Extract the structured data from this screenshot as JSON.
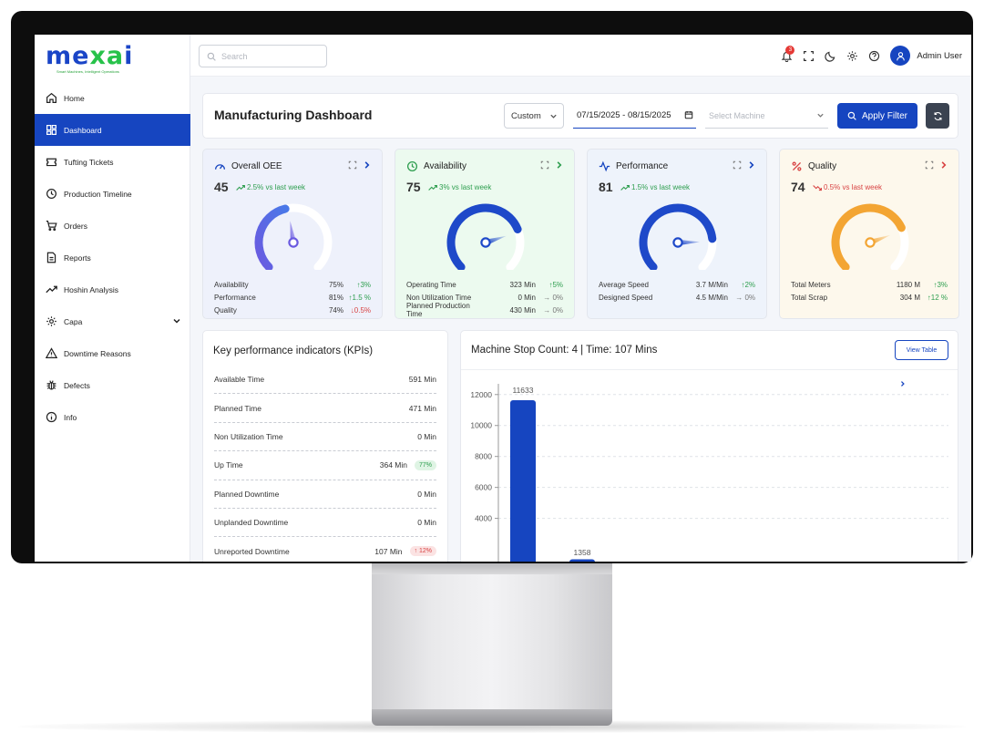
{
  "app": {
    "logo": {
      "part1": "me",
      "part2": "xa",
      "part3": "i",
      "tagline": "Smart Machines, Intelligent Operations"
    },
    "search_placeholder": "Search",
    "notifications_count": "3",
    "user_name": "Admin User"
  },
  "sidebar": {
    "items": [
      {
        "label": "Home",
        "icon": "home-icon",
        "active": false
      },
      {
        "label": "Dashboard",
        "icon": "dashboard-icon",
        "active": true
      },
      {
        "label": "Tufting Tickets",
        "icon": "ticket-icon",
        "active": false
      },
      {
        "label": "Production Timeline",
        "icon": "clock-icon",
        "active": false
      },
      {
        "label": "Orders",
        "icon": "cart-icon",
        "active": false
      },
      {
        "label": "Reports",
        "icon": "report-icon",
        "active": false
      },
      {
        "label": "Hoshin Analysis",
        "icon": "trend-icon",
        "active": false
      },
      {
        "label": "Capa",
        "icon": "gear-icon",
        "active": false
      },
      {
        "label": "Downtime Reasons",
        "icon": "warning-icon",
        "active": false
      },
      {
        "label": "Defects",
        "icon": "bug-icon",
        "active": false
      },
      {
        "label": "Info",
        "icon": "info-icon",
        "active": false
      }
    ]
  },
  "header": {
    "title": "Manufacturing Dashboard",
    "range": "Custom",
    "date_range": "07/15/2025 - 08/15/2025",
    "machine_placeholder": "Select Machine",
    "apply_label": "Apply Filter"
  },
  "metrics": {
    "oee": {
      "title": "Overall OEE",
      "value": "45",
      "delta": "2.5% vs last week",
      "gauge_fraction": 0.45,
      "rows": [
        {
          "label": "Availability",
          "value": "75%",
          "change": "3%"
        },
        {
          "label": "Performance",
          "value": "81%",
          "change": "1.5 %"
        },
        {
          "label": "Quality",
          "value": "74%",
          "change": "0.5%"
        }
      ]
    },
    "availability": {
      "title": "Availability",
      "value": "75",
      "delta": "3% vs last week",
      "gauge_fraction": 0.75,
      "rows": [
        {
          "label": "Operating Time",
          "value": "323 Min",
          "change": "5%"
        },
        {
          "label": "Non Utilization Time",
          "value": "0 Min",
          "change": "0%"
        },
        {
          "label": "Planned Production Time",
          "value": "430 Min",
          "change": "0%"
        }
      ]
    },
    "performance": {
      "title": "Performance",
      "value": "81",
      "delta": "1.5% vs last week",
      "gauge_fraction": 0.81,
      "rows": [
        {
          "label": "Average Speed",
          "value": "3.7 M/Min",
          "change": "2%"
        },
        {
          "label": "Designed Speed",
          "value": "4.5 M/Min",
          "change": "0%"
        }
      ]
    },
    "quality": {
      "title": "Quality",
      "value": "74",
      "delta": "0.5% vs last week",
      "gauge_fraction": 0.74,
      "rows": [
        {
          "label": "Total Meters",
          "value": "1180 M",
          "change": "3%"
        },
        {
          "label": "Total Scrap",
          "value": "304 M",
          "change": "12 %"
        }
      ]
    }
  },
  "kpi": {
    "title": "Key performance indicators (KPIs)",
    "rows": [
      {
        "label": "Available Time",
        "value": "591 Min",
        "pill": ""
      },
      {
        "label": "Planned Time",
        "value": "471 Min",
        "pill": ""
      },
      {
        "label": "Non Utilization Time",
        "value": "0 Min",
        "pill": ""
      },
      {
        "label": "Up Time",
        "value": "364 Min",
        "pill": "77%"
      },
      {
        "label": "Planned Downtime",
        "value": "0 Min",
        "pill": ""
      },
      {
        "label": "Unplanded Downtime",
        "value": "0 Min",
        "pill": ""
      },
      {
        "label": "Unreported Downtime",
        "value": "107 Min",
        "pill": "12%"
      }
    ]
  },
  "chart_panel": {
    "title": "Machine Stop Count: 4 | Time: 107 Mins",
    "view_table_label": "View Table"
  },
  "chart_data": {
    "type": "bar",
    "values": [
      11633,
      1358
    ],
    "data_labels": [
      "11633",
      "1358"
    ],
    "yticks": [
      4000,
      6000,
      8000,
      10000,
      12000
    ],
    "ylim": [
      0,
      12400
    ],
    "grid": true,
    "bar_color": "#1645c0"
  }
}
